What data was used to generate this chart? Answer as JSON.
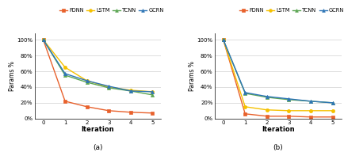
{
  "iterations": [
    0,
    1,
    2,
    3,
    4,
    5
  ],
  "chart_a": {
    "FDNN": [
      100,
      22,
      15,
      10,
      8,
      7
    ],
    "LSTM": [
      100,
      65,
      48,
      40,
      36,
      34
    ],
    "TCNN": [
      100,
      55,
      46,
      39,
      35,
      30
    ],
    "GCRN": [
      100,
      57,
      48,
      41,
      35,
      34
    ]
  },
  "chart_b": {
    "FDNN": [
      100,
      6,
      3,
      3,
      2,
      2
    ],
    "LSTM": [
      100,
      15,
      11,
      10,
      10,
      10
    ],
    "TCNN": [
      100,
      32,
      27,
      24,
      22,
      20
    ],
    "GCRN": [
      100,
      33,
      28,
      25,
      22,
      20
    ]
  },
  "colors": {
    "FDNN": "#E8612C",
    "LSTM": "#F5C100",
    "TCNN": "#5BA552",
    "GCRN": "#2E75B6"
  },
  "markers": {
    "FDNN": "s",
    "LSTM": "o",
    "TCNN": "^",
    "GCRN": "^"
  },
  "ylabel": "Params %",
  "xlabel": "Iteration",
  "label_a": "(a)",
  "label_b": "(b)",
  "yticks": [
    0,
    20,
    40,
    60,
    80,
    100
  ],
  "ytick_labels": [
    "0%",
    "20%",
    "40%",
    "60%",
    "80%",
    "100%"
  ],
  "legend_order": [
    "FDNN",
    "LSTM",
    "TCNN",
    "GCRN"
  ],
  "figsize": [
    4.35,
    1.92
  ],
  "dpi": 100
}
